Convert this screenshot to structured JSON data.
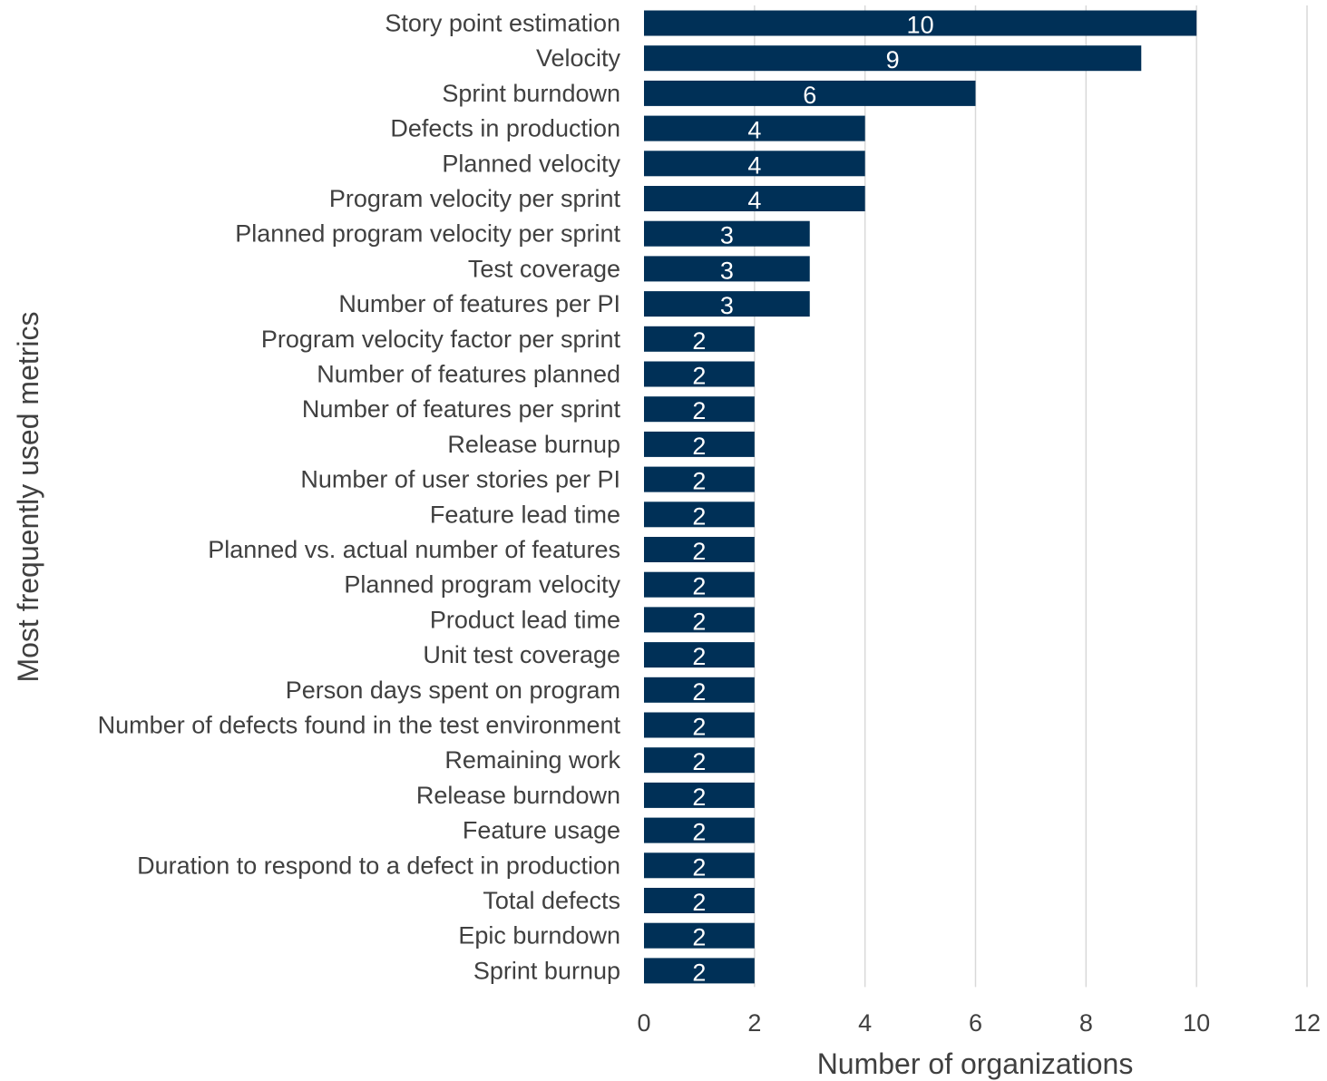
{
  "chart_data": {
    "type": "bar",
    "orientation": "horizontal",
    "xlabel": "Number of organizations",
    "ylabel": "Most frequently used metrics",
    "xlim": [
      0,
      12
    ],
    "xticks": [
      "0",
      "2",
      "4",
      "6",
      "8",
      "10",
      "12"
    ],
    "grid": "vertical",
    "bar_color": "#003057",
    "categories": [
      "Story point estimation",
      "Velocity",
      "Sprint burndown",
      "Defects in production",
      "Planned velocity",
      "Program velocity per sprint",
      "Planned program velocity per sprint",
      "Test coverage",
      "Number of features per PI",
      "Program velocity factor per sprint",
      "Number of features planned",
      "Number of features per sprint",
      "Release burnup",
      "Number of user stories per PI",
      "Feature lead time",
      "Planned vs. actual number of features",
      "Planned program velocity",
      "Product lead time",
      "Unit test coverage",
      "Person days spent on program",
      "Number of defects found in the test environment",
      "Remaining work",
      "Release burndown",
      "Feature usage",
      "Duration to respond to a defect in production",
      "Total defects",
      "Epic burndown",
      "Sprint burnup"
    ],
    "values": [
      10,
      9,
      6,
      4,
      4,
      4,
      3,
      3,
      3,
      2,
      2,
      2,
      2,
      2,
      2,
      2,
      2,
      2,
      2,
      2,
      2,
      2,
      2,
      2,
      2,
      2,
      2,
      2
    ]
  }
}
